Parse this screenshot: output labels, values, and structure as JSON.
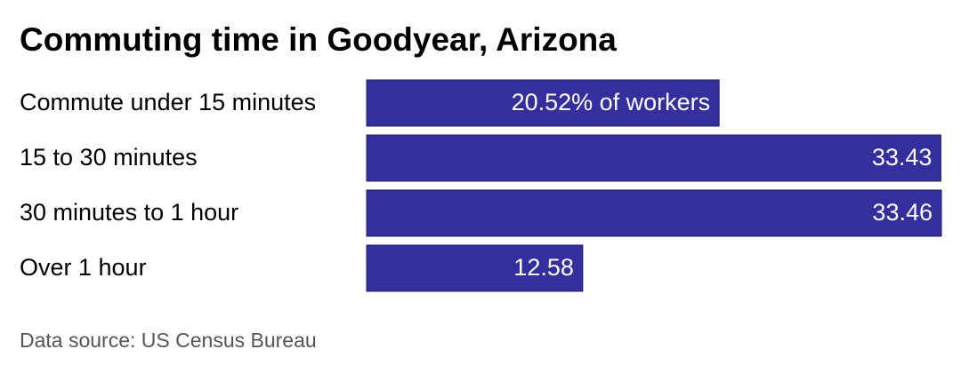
{
  "chart_data": {
    "type": "bar",
    "orientation": "horizontal",
    "title": "Commuting time in Goodyear, Arizona",
    "categories": [
      "Commute under 15 minutes",
      "15 to 30 minutes",
      "30 minutes to 1 hour",
      "Over 1 hour"
    ],
    "values": [
      20.52,
      33.43,
      33.46,
      12.58
    ],
    "value_labels": [
      "20.52% of workers",
      "33.43",
      "33.46",
      "12.58"
    ],
    "color": "#332f9f",
    "source": "Data source: US Census Bureau"
  }
}
